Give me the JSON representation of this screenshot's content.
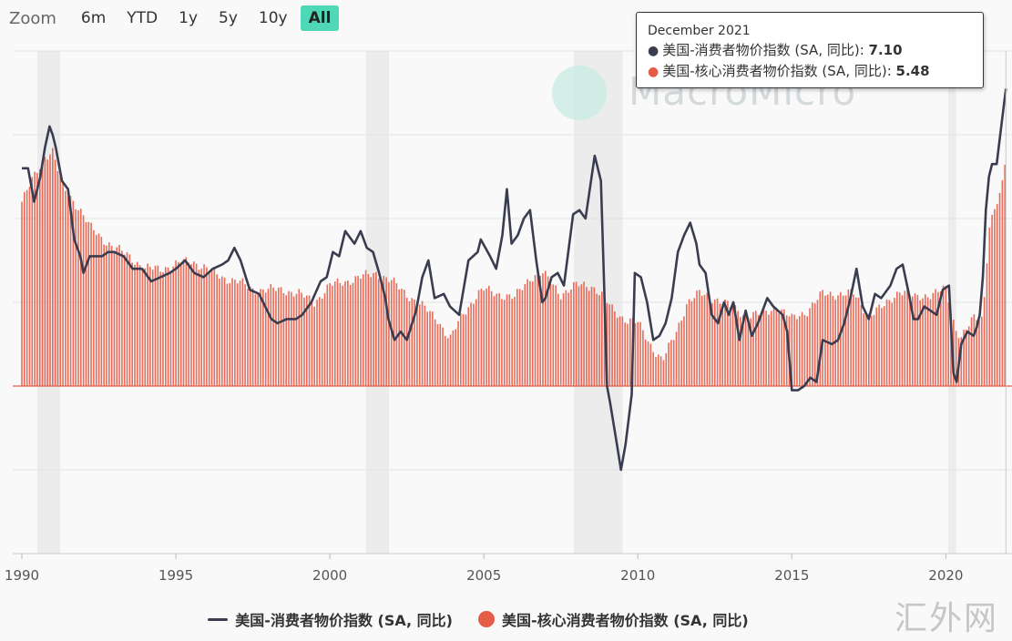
{
  "zoom": {
    "label": "Zoom",
    "options": [
      "6m",
      "YTD",
      "1y",
      "5y",
      "10y",
      "All"
    ],
    "selected": "All"
  },
  "tooltip": {
    "date": "December 2021",
    "rows": [
      {
        "label": "美国-消费者物价指数 (SA, 同比):",
        "value": "7.10",
        "color": "#3a3d4f"
      },
      {
        "label": "美国-核心消费者物价指数 (SA, 同比):",
        "value": "5.48",
        "color": "#e65c47"
      }
    ]
  },
  "watermark": "MacroMicro",
  "corner_logo": "汇外网",
  "legend": [
    {
      "label": "美国-消费者物价指数 (SA, 同比)",
      "color": "#3a3d4f"
    },
    {
      "label": "美国-核心消费者物价指数 (SA, 同比)",
      "color": "#e65c47"
    }
  ],
  "chart_data": {
    "type": "line",
    "xlim": [
      1990.0,
      2022.0
    ],
    "ylim": [
      -4,
      8
    ],
    "x_ticks": [
      1990,
      1995,
      2000,
      2005,
      2010,
      2015,
      2020
    ],
    "y_gridlines": [
      -4,
      -2,
      0,
      2,
      4,
      6,
      8
    ],
    "recessions": [
      [
        1990.5,
        1991.25
      ],
      [
        2001.17,
        2001.92
      ],
      [
        2007.92,
        2009.5
      ],
      [
        2020.08,
        2020.33
      ]
    ],
    "colors": {
      "headline": "#3a3d4f",
      "core": "#e65c47"
    },
    "series": [
      {
        "name": "美国-消费者物价指数 (SA, 同比)",
        "type": "line",
        "points": [
          [
            1990.0,
            5.2
          ],
          [
            1990.2,
            5.2
          ],
          [
            1990.4,
            4.4
          ],
          [
            1990.6,
            5.0
          ],
          [
            1990.75,
            5.7
          ],
          [
            1990.9,
            6.2
          ],
          [
            1991.0,
            6.0
          ],
          [
            1991.1,
            5.7
          ],
          [
            1991.3,
            4.9
          ],
          [
            1991.5,
            4.7
          ],
          [
            1991.7,
            3.5
          ],
          [
            1991.9,
            3.1
          ],
          [
            1992.0,
            2.7
          ],
          [
            1992.2,
            3.1
          ],
          [
            1992.4,
            3.1
          ],
          [
            1992.6,
            3.1
          ],
          [
            1992.8,
            3.2
          ],
          [
            1993.0,
            3.2
          ],
          [
            1993.3,
            3.1
          ],
          [
            1993.6,
            2.8
          ],
          [
            1993.9,
            2.8
          ],
          [
            1994.2,
            2.5
          ],
          [
            1994.5,
            2.6
          ],
          [
            1994.8,
            2.7
          ],
          [
            1995.0,
            2.8
          ],
          [
            1995.3,
            3.0
          ],
          [
            1995.6,
            2.7
          ],
          [
            1995.9,
            2.6
          ],
          [
            1996.2,
            2.8
          ],
          [
            1996.5,
            2.9
          ],
          [
            1996.7,
            3.0
          ],
          [
            1996.9,
            3.3
          ],
          [
            1997.1,
            3.0
          ],
          [
            1997.4,
            2.3
          ],
          [
            1997.7,
            2.2
          ],
          [
            1997.9,
            1.9
          ],
          [
            1998.1,
            1.6
          ],
          [
            1998.3,
            1.5
          ],
          [
            1998.6,
            1.6
          ],
          [
            1998.9,
            1.6
          ],
          [
            1999.1,
            1.7
          ],
          [
            1999.4,
            2.0
          ],
          [
            1999.7,
            2.5
          ],
          [
            1999.9,
            2.6
          ],
          [
            2000.1,
            3.2
          ],
          [
            2000.3,
            3.1
          ],
          [
            2000.5,
            3.7
          ],
          [
            2000.8,
            3.4
          ],
          [
            2001.0,
            3.7
          ],
          [
            2001.2,
            3.3
          ],
          [
            2001.4,
            3.2
          ],
          [
            2001.6,
            2.7
          ],
          [
            2001.8,
            2.1
          ],
          [
            2001.9,
            1.6
          ],
          [
            2002.1,
            1.1
          ],
          [
            2002.3,
            1.3
          ],
          [
            2002.5,
            1.1
          ],
          [
            2002.8,
            1.8
          ],
          [
            2003.0,
            2.6
          ],
          [
            2003.2,
            3.0
          ],
          [
            2003.4,
            2.1
          ],
          [
            2003.7,
            2.2
          ],
          [
            2003.9,
            1.9
          ],
          [
            2004.2,
            1.7
          ],
          [
            2004.5,
            3.0
          ],
          [
            2004.8,
            3.2
          ],
          [
            2004.9,
            3.5
          ],
          [
            2005.2,
            3.1
          ],
          [
            2005.4,
            2.8
          ],
          [
            2005.6,
            3.6
          ],
          [
            2005.75,
            4.7
          ],
          [
            2005.9,
            3.4
          ],
          [
            2006.1,
            3.6
          ],
          [
            2006.3,
            4.0
          ],
          [
            2006.5,
            4.2
          ],
          [
            2006.7,
            3.0
          ],
          [
            2006.9,
            2.0
          ],
          [
            2007.0,
            2.1
          ],
          [
            2007.2,
            2.6
          ],
          [
            2007.4,
            2.7
          ],
          [
            2007.6,
            2.4
          ],
          [
            2007.9,
            4.1
          ],
          [
            2008.1,
            4.2
          ],
          [
            2008.3,
            4.0
          ],
          [
            2008.5,
            5.0
          ],
          [
            2008.6,
            5.5
          ],
          [
            2008.8,
            4.9
          ],
          [
            2008.9,
            2.5
          ],
          [
            2009.0,
            0.0
          ],
          [
            2009.1,
            -0.4
          ],
          [
            2009.3,
            -1.3
          ],
          [
            2009.45,
            -2.0
          ],
          [
            2009.6,
            -1.4
          ],
          [
            2009.8,
            -0.2
          ],
          [
            2009.9,
            2.7
          ],
          [
            2010.1,
            2.6
          ],
          [
            2010.3,
            2.0
          ],
          [
            2010.5,
            1.1
          ],
          [
            2010.7,
            1.2
          ],
          [
            2010.9,
            1.5
          ],
          [
            2011.1,
            2.1
          ],
          [
            2011.3,
            3.2
          ],
          [
            2011.5,
            3.6
          ],
          [
            2011.7,
            3.9
          ],
          [
            2011.9,
            3.4
          ],
          [
            2012.0,
            2.9
          ],
          [
            2012.2,
            2.7
          ],
          [
            2012.4,
            1.7
          ],
          [
            2012.6,
            1.5
          ],
          [
            2012.8,
            2.0
          ],
          [
            2012.95,
            1.7
          ],
          [
            2013.1,
            2.0
          ],
          [
            2013.3,
            1.1
          ],
          [
            2013.5,
            1.8
          ],
          [
            2013.7,
            1.2
          ],
          [
            2013.9,
            1.5
          ],
          [
            2014.2,
            2.1
          ],
          [
            2014.4,
            1.9
          ],
          [
            2014.7,
            1.7
          ],
          [
            2014.85,
            1.3
          ],
          [
            2015.0,
            -0.1
          ],
          [
            2015.2,
            -0.1
          ],
          [
            2015.4,
            0.0
          ],
          [
            2015.6,
            0.2
          ],
          [
            2015.8,
            0.1
          ],
          [
            2016.0,
            1.1
          ],
          [
            2016.3,
            1.0
          ],
          [
            2016.5,
            1.1
          ],
          [
            2016.7,
            1.5
          ],
          [
            2016.9,
            2.1
          ],
          [
            2017.1,
            2.8
          ],
          [
            2017.3,
            1.9
          ],
          [
            2017.5,
            1.6
          ],
          [
            2017.7,
            2.2
          ],
          [
            2017.9,
            2.1
          ],
          [
            2018.2,
            2.4
          ],
          [
            2018.4,
            2.8
          ],
          [
            2018.6,
            2.9
          ],
          [
            2018.8,
            2.2
          ],
          [
            2018.95,
            1.6
          ],
          [
            2019.1,
            1.6
          ],
          [
            2019.3,
            1.9
          ],
          [
            2019.5,
            1.8
          ],
          [
            2019.7,
            1.7
          ],
          [
            2019.9,
            2.3
          ],
          [
            2020.1,
            2.4
          ],
          [
            2020.25,
            0.3
          ],
          [
            2020.35,
            0.1
          ],
          [
            2020.5,
            1.0
          ],
          [
            2020.7,
            1.3
          ],
          [
            2020.9,
            1.2
          ],
          [
            2021.0,
            1.4
          ],
          [
            2021.1,
            1.7
          ],
          [
            2021.2,
            2.6
          ],
          [
            2021.3,
            4.2
          ],
          [
            2021.4,
            5.0
          ],
          [
            2021.5,
            5.3
          ],
          [
            2021.65,
            5.3
          ],
          [
            2021.8,
            6.2
          ],
          [
            2021.95,
            7.1
          ]
        ]
      },
      {
        "name": "美国-核心消费者物价指数 (SA, 同比)",
        "type": "column",
        "points": [
          [
            1990.0,
            4.4
          ],
          [
            1990.4,
            5.0
          ],
          [
            1990.75,
            5.5
          ],
          [
            1991.0,
            5.6
          ],
          [
            1991.3,
            4.8
          ],
          [
            1991.6,
            4.5
          ],
          [
            1991.9,
            4.2
          ],
          [
            1992.2,
            3.8
          ],
          [
            1992.5,
            3.6
          ],
          [
            1993.0,
            3.3
          ],
          [
            1993.5,
            3.1
          ],
          [
            1994.0,
            2.8
          ],
          [
            1994.5,
            2.8
          ],
          [
            1995.0,
            2.9
          ],
          [
            1995.5,
            3.0
          ],
          [
            1996.0,
            2.8
          ],
          [
            1996.5,
            2.6
          ],
          [
            1997.0,
            2.5
          ],
          [
            1997.5,
            2.3
          ],
          [
            1998.0,
            2.3
          ],
          [
            1998.5,
            2.3
          ],
          [
            1999.0,
            2.2
          ],
          [
            1999.5,
            2.0
          ],
          [
            2000.0,
            2.4
          ],
          [
            2000.5,
            2.5
          ],
          [
            2001.0,
            2.6
          ],
          [
            2001.5,
            2.7
          ],
          [
            2002.0,
            2.5
          ],
          [
            2002.5,
            2.2
          ],
          [
            2003.0,
            1.9
          ],
          [
            2003.5,
            1.6
          ],
          [
            2003.9,
            1.1
          ],
          [
            2004.3,
            1.7
          ],
          [
            2004.8,
            2.2
          ],
          [
            2005.0,
            2.3
          ],
          [
            2005.5,
            2.2
          ],
          [
            2006.0,
            2.1
          ],
          [
            2006.5,
            2.6
          ],
          [
            2006.9,
            2.7
          ],
          [
            2007.5,
            2.2
          ],
          [
            2008.0,
            2.4
          ],
          [
            2008.5,
            2.4
          ],
          [
            2008.8,
            2.2
          ],
          [
            2009.2,
            1.8
          ],
          [
            2009.6,
            1.6
          ],
          [
            2010.0,
            1.5
          ],
          [
            2010.4,
            1.0
          ],
          [
            2010.8,
            0.6
          ],
          [
            2011.2,
            1.2
          ],
          [
            2011.6,
            2.0
          ],
          [
            2012.0,
            2.2
          ],
          [
            2012.5,
            2.1
          ],
          [
            2013.0,
            1.9
          ],
          [
            2013.5,
            1.7
          ],
          [
            2014.0,
            1.7
          ],
          [
            2014.5,
            1.9
          ],
          [
            2015.0,
            1.6
          ],
          [
            2015.5,
            1.8
          ],
          [
            2016.0,
            2.2
          ],
          [
            2016.5,
            2.2
          ],
          [
            2017.0,
            2.2
          ],
          [
            2017.5,
            1.7
          ],
          [
            2018.0,
            1.9
          ],
          [
            2018.5,
            2.3
          ],
          [
            2019.0,
            2.1
          ],
          [
            2019.5,
            2.2
          ],
          [
            2020.0,
            2.3
          ],
          [
            2020.3,
            1.4
          ],
          [
            2020.5,
            1.2
          ],
          [
            2020.9,
            1.6
          ],
          [
            2021.2,
            1.6
          ],
          [
            2021.4,
            3.8
          ],
          [
            2021.6,
            4.3
          ],
          [
            2021.8,
            4.6
          ],
          [
            2021.95,
            5.48
          ]
        ]
      }
    ]
  }
}
